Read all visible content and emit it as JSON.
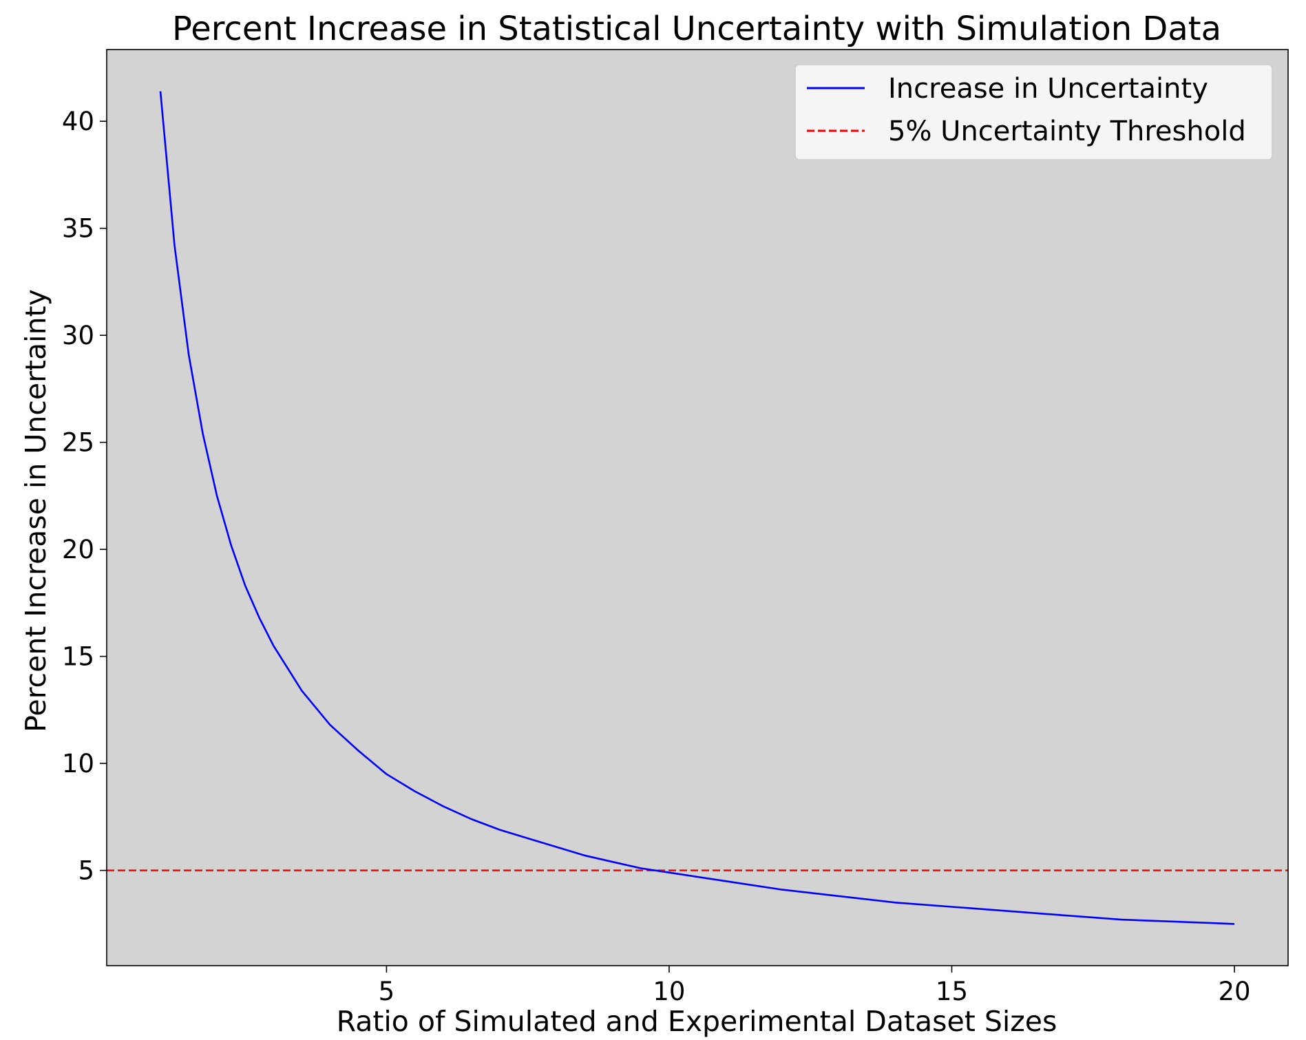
{
  "chart_data": {
    "type": "line",
    "title": "Percent Increase in Statistical Uncertainty with Simulation Data",
    "xlabel": "Ratio of Simulated and Experimental Dataset Sizes",
    "ylabel": "Percent Increase in Uncertainty",
    "xlim": [
      0.05,
      20.95
    ],
    "ylim": [
      0.55,
      43.35
    ],
    "xticks": [
      5,
      10,
      15,
      20
    ],
    "yticks": [
      5,
      10,
      15,
      20,
      25,
      30,
      35,
      40
    ],
    "grid": false,
    "legend_position": "top-right",
    "plot_background": "#d3d3d3",
    "series": [
      {
        "name": "Increase in Uncertainty",
        "color": "#0000ff",
        "style": "solid",
        "x": [
          1,
          1.25,
          1.5,
          1.75,
          2,
          2.25,
          2.5,
          2.75,
          3,
          3.5,
          4,
          4.5,
          5,
          5.5,
          6,
          6.5,
          7,
          7.5,
          8,
          8.5,
          9,
          9.5,
          10,
          11,
          12,
          13,
          14,
          15,
          16,
          17,
          18,
          19,
          20
        ],
        "y": [
          41.4,
          34.2,
          29.1,
          25.4,
          22.5,
          20.2,
          18.3,
          16.8,
          15.5,
          13.4,
          11.8,
          10.6,
          9.5,
          8.7,
          8.0,
          7.4,
          6.9,
          6.5,
          6.1,
          5.7,
          5.4,
          5.1,
          4.9,
          4.5,
          4.1,
          3.8,
          3.5,
          3.3,
          3.1,
          2.9,
          2.7,
          2.6,
          2.5
        ]
      },
      {
        "name": "5% Uncertainty Threshold",
        "color": "#ff0000",
        "style": "dashed",
        "y_constant": 5
      }
    ]
  }
}
